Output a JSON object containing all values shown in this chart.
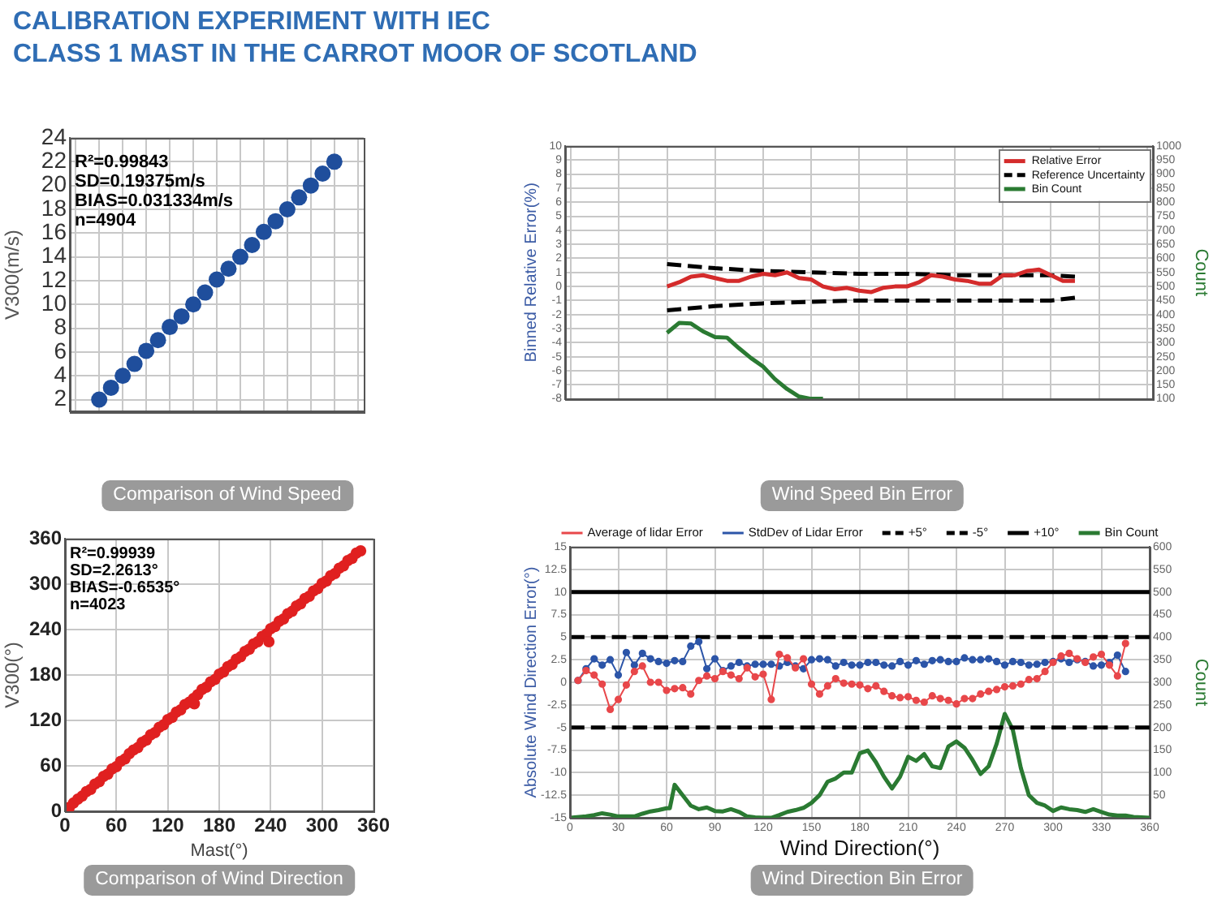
{
  "chart_data": [
    {
      "type": "scatter",
      "title": "CALIBRATION EXPERIMENT WITH IEC\nCLASS 1 MAST IN THE CARROT MOOR OF SCOTLAND",
      "subtitle": "Comparison of Wind Speed",
      "ylabel": "V300(m/s)",
      "annotations": [
        "R²=0.99843",
        "SD=0.19375m/s",
        "BIAS=0.031334m/s",
        "n=4904"
      ],
      "categories": [
        null,
        null,
        null,
        null,
        null,
        null,
        null,
        null,
        null,
        null,
        null,
        null,
        null,
        null,
        null,
        null,
        null,
        null,
        null,
        null,
        null,
        null,
        null,
        null,
        null
      ],
      "ylim": [
        1,
        24
      ],
      "yticks": [
        2,
        4,
        6,
        8,
        10,
        12,
        14,
        16,
        18,
        20,
        22,
        24
      ],
      "grid": true,
      "marker": "circle",
      "series": [
        {
          "color": "#1f4e9c",
          "values": [
            null,
            null,
            2.0,
            3.0,
            4.0,
            5.0,
            6.1,
            7.0,
            8.1,
            9.0,
            10.0,
            11.0,
            12.1,
            13.0,
            14.0,
            15.0,
            16.1,
            17.0,
            18.0,
            19.0,
            20.0,
            21.0,
            22.0,
            null,
            null
          ]
        }
      ]
    },
    {
      "type": "line",
      "subtitle": "Wind Speed Bin Error",
      "ylabel": "Binned Relative Error(%)",
      "y2label": "Count",
      "categories": [
        null,
        null,
        null,
        null,
        null,
        null,
        null,
        null,
        null,
        null,
        null,
        null,
        null,
        null,
        null,
        null,
        null,
        null,
        null,
        null,
        null,
        null,
        null,
        null,
        null,
        null,
        null,
        null,
        null,
        null,
        null,
        null,
        null,
        null,
        null,
        null,
        null,
        null,
        null,
        null,
        null,
        null,
        null,
        null,
        null,
        null,
        null,
        null,
        null
      ],
      "ylim": [
        -8,
        10
      ],
      "yticks": [
        -8,
        -7,
        -6,
        -5,
        -4,
        -3,
        -2,
        -1,
        0,
        1,
        2,
        3,
        4,
        5,
        6,
        7,
        8,
        9,
        10
      ],
      "y2lim": [
        100,
        1000
      ],
      "y2ticks": [
        100,
        150,
        200,
        250,
        300,
        350,
        400,
        450,
        500,
        550,
        600,
        650,
        700,
        750,
        800,
        850,
        900,
        950,
        1000
      ],
      "grid": true,
      "legend": "top right",
      "series": [
        {
          "name": "Relative Error",
          "color": "#d42b2b",
          "values": [
            null,
            null,
            null,
            null,
            null,
            null,
            null,
            null,
            0,
            0.3,
            0.7,
            0.8,
            0.6,
            0.4,
            0.4,
            0.7,
            0.9,
            0.8,
            1.0,
            0.6,
            0.5,
            0,
            -0.2,
            -0.1,
            -0.3,
            -0.4,
            -0.1,
            0,
            0,
            0.3,
            0.8,
            0.7,
            0.5,
            0.4,
            0.2,
            0.2,
            0.8,
            0.8,
            1.1,
            1.2,
            0.8,
            0.4,
            0.4,
            null,
            null,
            null,
            null,
            null,
            null
          ]
        },
        {
          "name": "Reference Uncertainty",
          "color": "#000000",
          "line_style": "dashed",
          "values": [
            null,
            null,
            null,
            null,
            null,
            null,
            null,
            null,
            1.6,
            null,
            null,
            null,
            1.3,
            null,
            null,
            null,
            1.1,
            null,
            null,
            null,
            1.0,
            null,
            null,
            null,
            0.9,
            null,
            null,
            null,
            0.9,
            null,
            null,
            null,
            0.8,
            null,
            null,
            null,
            0.8,
            null,
            null,
            null,
            0.8,
            null,
            0.7,
            null,
            null,
            null,
            null,
            null,
            null
          ]
        },
        {
          "color": "#000000",
          "line_style": "dashed",
          "values": [
            null,
            null,
            null,
            null,
            null,
            null,
            null,
            null,
            -1.7,
            null,
            null,
            null,
            -1.4,
            null,
            null,
            null,
            -1.2,
            null,
            null,
            null,
            -1.1,
            null,
            null,
            null,
            -1.0,
            null,
            null,
            null,
            -1.0,
            null,
            null,
            null,
            -1.0,
            null,
            null,
            null,
            -1.0,
            null,
            null,
            null,
            -1.0,
            null,
            -0.8,
            null,
            null,
            null,
            null,
            null,
            null
          ]
        },
        {
          "name": "Bin Count",
          "color": "#2a7a32",
          "axis": "y2",
          "values": [
            null,
            null,
            null,
            null,
            null,
            null,
            null,
            null,
            335,
            370,
            368,
            340,
            320,
            318,
            280,
            245,
            215,
            170,
            135,
            108,
            100,
            100,
            null,
            null,
            null,
            null,
            null,
            null,
            null,
            null,
            null,
            null,
            null,
            null,
            null,
            null,
            null,
            null,
            null,
            null,
            null,
            null,
            null,
            null,
            null,
            null,
            null,
            null,
            null
          ]
        }
      ]
    },
    {
      "type": "scatter",
      "subtitle": "Comparison of Wind Direction",
      "xlabel": "Mast(°)",
      "ylabel": "V300(°)",
      "annotations": [
        "R²=0.99939",
        "SD=2.2613°",
        "BIAS=-0.6535°",
        "n=4023"
      ],
      "xlim": [
        0,
        360
      ],
      "xticks": [
        0,
        60,
        120,
        180,
        240,
        300,
        360
      ],
      "ylim": [
        0,
        360
      ],
      "yticks": [
        0,
        60,
        120,
        180,
        240,
        300,
        360
      ],
      "grid": true,
      "marker": "circle",
      "series": [
        {
          "color": "#e02020",
          "x": [
            5,
            10,
            15,
            20,
            25,
            30,
            35,
            40,
            45,
            50,
            55,
            60,
            65,
            70,
            75,
            80,
            85,
            90,
            95,
            100,
            105,
            110,
            115,
            120,
            125,
            130,
            135,
            140,
            145,
            151,
            150,
            155,
            160,
            165,
            170,
            175,
            180,
            185,
            190,
            195,
            200,
            205,
            210,
            215,
            220,
            225,
            230,
            235,
            238,
            240,
            245,
            250,
            255,
            260,
            265,
            270,
            275,
            280,
            285,
            290,
            295,
            300,
            305,
            310,
            315,
            320,
            325,
            330,
            335,
            340,
            345
          ],
          "values": [
            5,
            11,
            16,
            20,
            26,
            29,
            36,
            39,
            46,
            49,
            56,
            59,
            66,
            69,
            76,
            81,
            84,
            91,
            94,
            101,
            104,
            111,
            114,
            121,
            124,
            131,
            134,
            141,
            144,
            142,
            149,
            154,
            161,
            164,
            171,
            174,
            181,
            184,
            191,
            194,
            201,
            204,
            211,
            214,
            221,
            224,
            231,
            234,
            224,
            241,
            244,
            251,
            254,
            261,
            264,
            271,
            274,
            281,
            284,
            291,
            294,
            301,
            304,
            311,
            314,
            321,
            324,
            331,
            334,
            341,
            344
          ]
        }
      ]
    },
    {
      "type": "line",
      "subtitle": "Wind Direction Bin Error",
      "xlabel": "Wind Direction(°)",
      "ylabel": "Absolute Wind Direction Error(°)",
      "y2label": "Count",
      "x": [
        5,
        10,
        15,
        20,
        25,
        30,
        35,
        40,
        45,
        50,
        55,
        60,
        65,
        70,
        75,
        80,
        85,
        90,
        95,
        100,
        105,
        110,
        115,
        120,
        125,
        130,
        135,
        140,
        145,
        150,
        155,
        160,
        165,
        170,
        175,
        180,
        185,
        190,
        195,
        200,
        205,
        210,
        215,
        220,
        225,
        230,
        235,
        240,
        245,
        250,
        255,
        260,
        265,
        270,
        275,
        280,
        285,
        290,
        295,
        300,
        305,
        310,
        315,
        320,
        325,
        330,
        335,
        340,
        345
      ],
      "xlim": [
        0,
        360
      ],
      "xticks": [
        0,
        30,
        60,
        90,
        120,
        150,
        180,
        210,
        240,
        270,
        300,
        330,
        360
      ],
      "ylim": [
        -15,
        15
      ],
      "yticks": [
        -15,
        -12.5,
        -10,
        -7.5,
        -5,
        -2.5,
        0,
        2.5,
        5,
        7.5,
        10,
        12.5,
        15
      ],
      "y2lim": [
        0,
        600
      ],
      "y2ticks": [
        50,
        100,
        150,
        200,
        250,
        300,
        350,
        400,
        450,
        500,
        550,
        600
      ],
      "grid": true,
      "legend": "top",
      "series": [
        {
          "name": "Average of lidar Error",
          "color": "#e8474a",
          "marker": "circle",
          "values": [
            0.2,
            1.3,
            0.8,
            -0.2,
            -3.0,
            -1.9,
            -0.3,
            1.2,
            1.8,
            0,
            0,
            -0.9,
            -0.7,
            -0.6,
            -1.3,
            0.2,
            0.7,
            0.4,
            1.2,
            0.8,
            0.4,
            1.6,
            0.6,
            0.9,
            -1.9,
            3.1,
            2.7,
            1.6,
            2.6,
            -0.2,
            -1.3,
            -0.4,
            0.4,
            -0.1,
            -0.2,
            -0.3,
            -0.7,
            -0.4,
            -1.0,
            -1.5,
            -1.7,
            -1.6,
            -2.0,
            -2.2,
            -1.5,
            -1.8,
            -2.0,
            -2.4,
            -1.8,
            -1.8,
            -1.3,
            -1.0,
            -0.8,
            -0.5,
            -0.4,
            -0.2,
            0.3,
            0.4,
            1.2,
            2.2,
            2.9,
            3.2,
            2.6,
            2.2,
            2.8,
            3.1,
            1.9,
            0.7,
            4.3
          ]
        },
        {
          "name": "StdDev of Lidar Error",
          "color": "#2c55a8",
          "marker": "circle",
          "values": [
            0.2,
            1.5,
            2.6,
            1.9,
            2.5,
            0.8,
            3.3,
            1.9,
            3.2,
            2.6,
            2.3,
            2.1,
            2.4,
            2.3,
            4.0,
            4.5,
            1.5,
            2.6,
            1.3,
            1.8,
            2.2,
            1.8,
            2.0,
            2.0,
            2.0,
            1.8,
            2.2,
            1.8,
            1.5,
            2.5,
            2.6,
            2.5,
            1.8,
            2.2,
            1.9,
            1.9,
            2.2,
            2.2,
            1.9,
            1.8,
            2.3,
            1.9,
            2.4,
            2.0,
            2.4,
            2.5,
            2.3,
            2.3,
            2.7,
            2.5,
            2.5,
            2.6,
            2.3,
            1.9,
            2.3,
            2.2,
            1.9,
            2.0,
            2.2,
            2.3,
            2.6,
            2.2,
            2.5,
            2.3,
            1.8,
            1.9,
            2.2,
            3.0,
            1.2
          ]
        },
        {
          "name": "+5°",
          "color": "#000000",
          "line_style": "dashed",
          "x": [
            0,
            360
          ],
          "values": [
            5,
            5
          ]
        },
        {
          "name": "-5°",
          "color": "#000000",
          "line_style": "dashed",
          "x": [
            0,
            360
          ],
          "values": [
            -5,
            -5
          ]
        },
        {
          "name": "+10°",
          "color": "#000000",
          "x": [
            0,
            360
          ],
          "values": [
            10,
            10
          ]
        },
        {
          "name": "Bin Count",
          "color": "#2a7a32",
          "axis": "y2",
          "marker": "none",
          "x": [
            0,
            10,
            15,
            20,
            25,
            30,
            40,
            45,
            50,
            55,
            60,
            62,
            65,
            70,
            75,
            80,
            85,
            90,
            95,
            100,
            105,
            110,
            115,
            120,
            125,
            130,
            135,
            140,
            145,
            150,
            155,
            160,
            165,
            170,
            175,
            180,
            185,
            190,
            195,
            200,
            205,
            210,
            215,
            220,
            225,
            230,
            235,
            240,
            245,
            250,
            255,
            260,
            265,
            270,
            275,
            280,
            285,
            290,
            295,
            300,
            305,
            310,
            315,
            320,
            325,
            330,
            335,
            340,
            345,
            350,
            360
          ],
          "values": [
            0,
            3,
            6,
            10,
            7,
            3,
            3,
            9,
            14,
            17,
            21,
            21,
            73,
            50,
            27,
            19,
            23,
            15,
            14,
            19,
            13,
            3,
            1,
            0,
            0,
            6,
            13,
            17,
            22,
            33,
            50,
            80,
            87,
            100,
            100,
            143,
            149,
            123,
            91,
            65,
            91,
            135,
            126,
            141,
            114,
            110,
            158,
            169,
            155,
            128,
            97,
            114,
            164,
            230,
            195,
            110,
            50,
            33,
            27,
            15,
            23,
            19,
            17,
            13,
            19,
            13,
            7,
            5,
            5,
            2,
            0
          ]
        }
      ]
    }
  ]
}
